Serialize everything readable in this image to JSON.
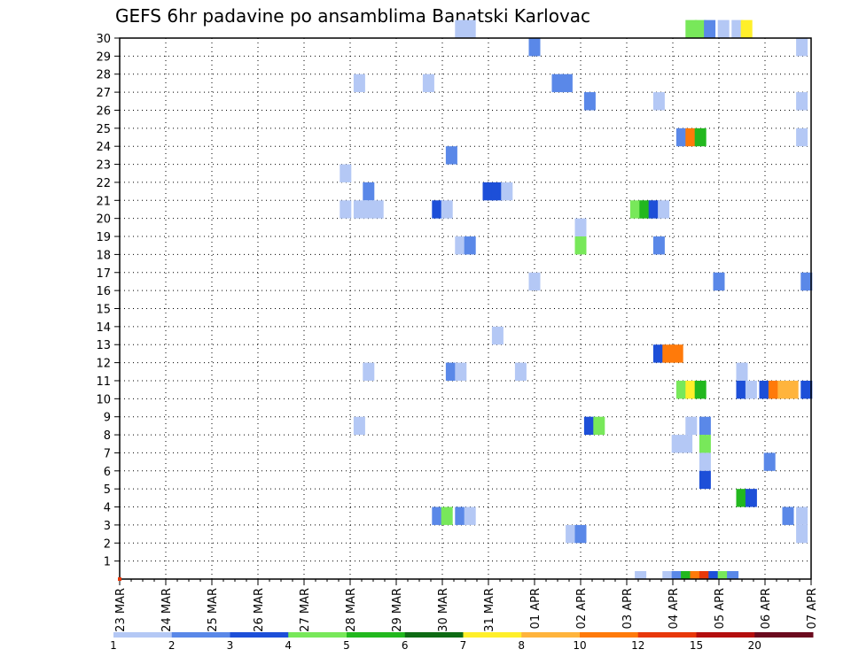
{
  "chart_data": {
    "type": "heatmap",
    "title": "GEFS 6hr padavine po ansamblima Banatski Karlovac",
    "xlabel": "",
    "ylabel": "",
    "x_tick_labels": [
      "23 MAR",
      "24 MAR",
      "25 MAR",
      "26 MAR",
      "27 MAR",
      "28 MAR",
      "29 MAR",
      "30 MAR",
      "31 MAR",
      "01 APR",
      "02 APR",
      "03 APR",
      "04 APR",
      "05 APR",
      "06 APR",
      "07 APR"
    ],
    "x_range_days": [
      0,
      15
    ],
    "time_step_hours": 6,
    "y_range": [
      0,
      30
    ],
    "y_ticks": [
      1,
      2,
      3,
      4,
      5,
      6,
      7,
      8,
      9,
      10,
      11,
      12,
      13,
      14,
      15,
      16,
      17,
      18,
      19,
      20,
      21,
      22,
      23,
      24,
      25,
      26,
      27,
      28,
      29,
      30
    ],
    "grid": "dotted",
    "legend": {
      "placement": "bottom",
      "levels": [
        "1",
        "2",
        "3",
        "4",
        "5",
        "6",
        "7",
        "8",
        "10",
        "12",
        "15",
        "20"
      ],
      "colors": [
        "#b4c8f5",
        "#5a88e8",
        "#1d4fd8",
        "#78e85a",
        "#22b81e",
        "#0e6b14",
        "#ffef2a",
        "#ffb43c",
        "#ff7a0a",
        "#e8380a",
        "#b40e0e",
        "#6b0a1e"
      ]
    },
    "cells": [
      {
        "t": 7.4,
        "m": 30,
        "c": 0
      },
      {
        "t": 7.6,
        "m": 30,
        "c": 0
      },
      {
        "t": 12.4,
        "m": 30,
        "c": 3
      },
      {
        "t": 12.6,
        "m": 30,
        "c": 3
      },
      {
        "t": 12.8,
        "m": 30,
        "c": 1
      },
      {
        "t": 13.1,
        "m": 30,
        "c": 0
      },
      {
        "t": 13.4,
        "m": 30,
        "c": 0
      },
      {
        "t": 13.6,
        "m": 30,
        "c": 6
      },
      {
        "t": 9.0,
        "m": 29,
        "c": 1
      },
      {
        "t": 14.8,
        "m": 29,
        "c": 0
      },
      {
        "t": 5.2,
        "m": 27,
        "c": 0
      },
      {
        "t": 6.7,
        "m": 27,
        "c": 0
      },
      {
        "t": 9.5,
        "m": 27,
        "c": 1
      },
      {
        "t": 9.7,
        "m": 27,
        "c": 1
      },
      {
        "t": 10.2,
        "m": 26,
        "c": 1
      },
      {
        "t": 11.7,
        "m": 26,
        "c": 0
      },
      {
        "t": 14.8,
        "m": 26,
        "c": 0
      },
      {
        "t": 12.2,
        "m": 24,
        "c": 1
      },
      {
        "t": 12.4,
        "m": 24,
        "c": 8
      },
      {
        "t": 12.6,
        "m": 24,
        "c": 4
      },
      {
        "t": 14.8,
        "m": 24,
        "c": 0
      },
      {
        "t": 7.2,
        "m": 23,
        "c": 1
      },
      {
        "t": 4.9,
        "m": 22,
        "c": 0
      },
      {
        "t": 5.4,
        "m": 21,
        "c": 1
      },
      {
        "t": 8.0,
        "m": 21,
        "c": 2
      },
      {
        "t": 8.2,
        "m": 21,
        "c": 2
      },
      {
        "t": 8.4,
        "m": 21,
        "c": 0
      },
      {
        "t": 4.9,
        "m": 20,
        "c": 0
      },
      {
        "t": 5.2,
        "m": 20,
        "c": 0
      },
      {
        "t": 5.4,
        "m": 20,
        "c": 0
      },
      {
        "t": 5.6,
        "m": 20,
        "c": 0
      },
      {
        "t": 6.9,
        "m": 20,
        "c": 2
      },
      {
        "t": 7.1,
        "m": 20,
        "c": 0
      },
      {
        "t": 11.2,
        "m": 20,
        "c": 3
      },
      {
        "t": 11.4,
        "m": 20,
        "c": 4
      },
      {
        "t": 11.6,
        "m": 20,
        "c": 2
      },
      {
        "t": 11.8,
        "m": 20,
        "c": 0
      },
      {
        "t": 10.0,
        "m": 19,
        "c": 0
      },
      {
        "t": 7.4,
        "m": 18,
        "c": 0
      },
      {
        "t": 7.6,
        "m": 18,
        "c": 1
      },
      {
        "t": 10.0,
        "m": 18,
        "c": 3
      },
      {
        "t": 11.7,
        "m": 18,
        "c": 1
      },
      {
        "t": 14.9,
        "m": 16,
        "c": 1
      },
      {
        "t": 13.0,
        "m": 16,
        "c": 1
      },
      {
        "t": 9.0,
        "m": 16,
        "c": 0
      },
      {
        "t": 8.2,
        "m": 13,
        "c": 0
      },
      {
        "t": 11.7,
        "m": 12,
        "c": 2
      },
      {
        "t": 11.9,
        "m": 12,
        "c": 8
      },
      {
        "t": 12.1,
        "m": 12,
        "c": 8
      },
      {
        "t": 5.4,
        "m": 11,
        "c": 0
      },
      {
        "t": 7.2,
        "m": 11,
        "c": 1
      },
      {
        "t": 7.4,
        "m": 11,
        "c": 0
      },
      {
        "t": 8.7,
        "m": 11,
        "c": 0
      },
      {
        "t": 13.5,
        "m": 11,
        "c": 0
      },
      {
        "t": 12.2,
        "m": 10,
        "c": 3
      },
      {
        "t": 12.4,
        "m": 10,
        "c": 6
      },
      {
        "t": 12.6,
        "m": 10,
        "c": 4
      },
      {
        "t": 13.5,
        "m": 10,
        "c": 2
      },
      {
        "t": 13.7,
        "m": 10,
        "c": 0
      },
      {
        "t": 14.0,
        "m": 10,
        "c": 2
      },
      {
        "t": 14.2,
        "m": 10,
        "c": 8
      },
      {
        "t": 14.4,
        "m": 10,
        "c": 7
      },
      {
        "t": 14.6,
        "m": 10,
        "c": 7
      },
      {
        "t": 14.9,
        "m": 10,
        "c": 2
      },
      {
        "t": 5.2,
        "m": 8,
        "c": 0
      },
      {
        "t": 10.2,
        "m": 8,
        "c": 2
      },
      {
        "t": 10.4,
        "m": 8,
        "c": 3
      },
      {
        "t": 12.4,
        "m": 8,
        "c": 0
      },
      {
        "t": 12.7,
        "m": 8,
        "c": 1
      },
      {
        "t": 12.1,
        "m": 7,
        "c": 0
      },
      {
        "t": 12.3,
        "m": 7,
        "c": 0
      },
      {
        "t": 12.7,
        "m": 7,
        "c": 3
      },
      {
        "t": 12.7,
        "m": 6,
        "c": 0
      },
      {
        "t": 14.1,
        "m": 6,
        "c": 1
      },
      {
        "t": 12.7,
        "m": 5,
        "c": 2
      },
      {
        "t": 13.5,
        "m": 4,
        "c": 4
      },
      {
        "t": 13.7,
        "m": 4,
        "c": 2
      },
      {
        "t": 6.9,
        "m": 3,
        "c": 1
      },
      {
        "t": 7.1,
        "m": 3,
        "c": 3
      },
      {
        "t": 7.4,
        "m": 3,
        "c": 1
      },
      {
        "t": 7.6,
        "m": 3,
        "c": 0
      },
      {
        "t": 14.5,
        "m": 3,
        "c": 1
      },
      {
        "t": 14.8,
        "m": 3,
        "c": 0
      },
      {
        "t": 9.8,
        "m": 2,
        "c": 0
      },
      {
        "t": 10.0,
        "m": 2,
        "c": 1
      },
      {
        "t": 14.8,
        "m": 2,
        "c": 0
      }
    ],
    "bottom_row": [
      {
        "t": 11.3,
        "c": 0
      },
      {
        "t": 11.9,
        "c": 0
      },
      {
        "t": 12.1,
        "c": 1
      },
      {
        "t": 12.3,
        "c": 4
      },
      {
        "t": 12.5,
        "c": 8
      },
      {
        "t": 12.7,
        "c": 9
      },
      {
        "t": 12.9,
        "c": 2
      },
      {
        "t": 13.1,
        "c": 3
      },
      {
        "t": 13.3,
        "c": 1
      }
    ]
  }
}
